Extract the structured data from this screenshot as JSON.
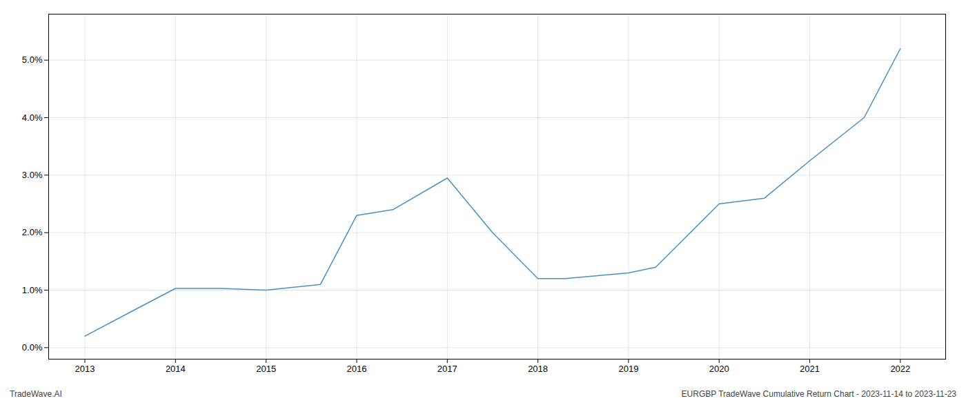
{
  "chart_data": {
    "type": "line",
    "x": [
      2013.0,
      2013.6,
      2014.0,
      2014.5,
      2015.0,
      2015.6,
      2016.0,
      2016.4,
      2017.0,
      2017.5,
      2018.0,
      2018.3,
      2019.0,
      2019.3,
      2020.0,
      2020.5,
      2021.0,
      2021.6,
      2022.0
    ],
    "values": [
      0.002,
      0.007,
      0.0103,
      0.0103,
      0.01,
      0.011,
      0.023,
      0.024,
      0.0295,
      0.02,
      0.012,
      0.012,
      0.013,
      0.014,
      0.025,
      0.026,
      0.0325,
      0.04,
      0.052
    ],
    "color": "#4a8fc2",
    "xlim": [
      2012.6,
      2022.5
    ],
    "ylim": [
      -0.002,
      0.058
    ],
    "xticks": [
      2013,
      2014,
      2015,
      2016,
      2017,
      2018,
      2019,
      2020,
      2021,
      2022
    ],
    "yticks": [
      {
        "value": 0.0,
        "label": "0.0%"
      },
      {
        "value": 0.01,
        "label": "1.0%"
      },
      {
        "value": 0.02,
        "label": "2.0%"
      },
      {
        "value": 0.03,
        "label": "3.0%"
      },
      {
        "value": 0.04,
        "label": "4.0%"
      },
      {
        "value": 0.05,
        "label": "5.0%"
      }
    ],
    "grid": true,
    "annotations": [
      "TradeWave.AI",
      "EURGBP TradeWave Cumulative Return Chart - 2023-11-14 to 2023-11-23"
    ]
  }
}
